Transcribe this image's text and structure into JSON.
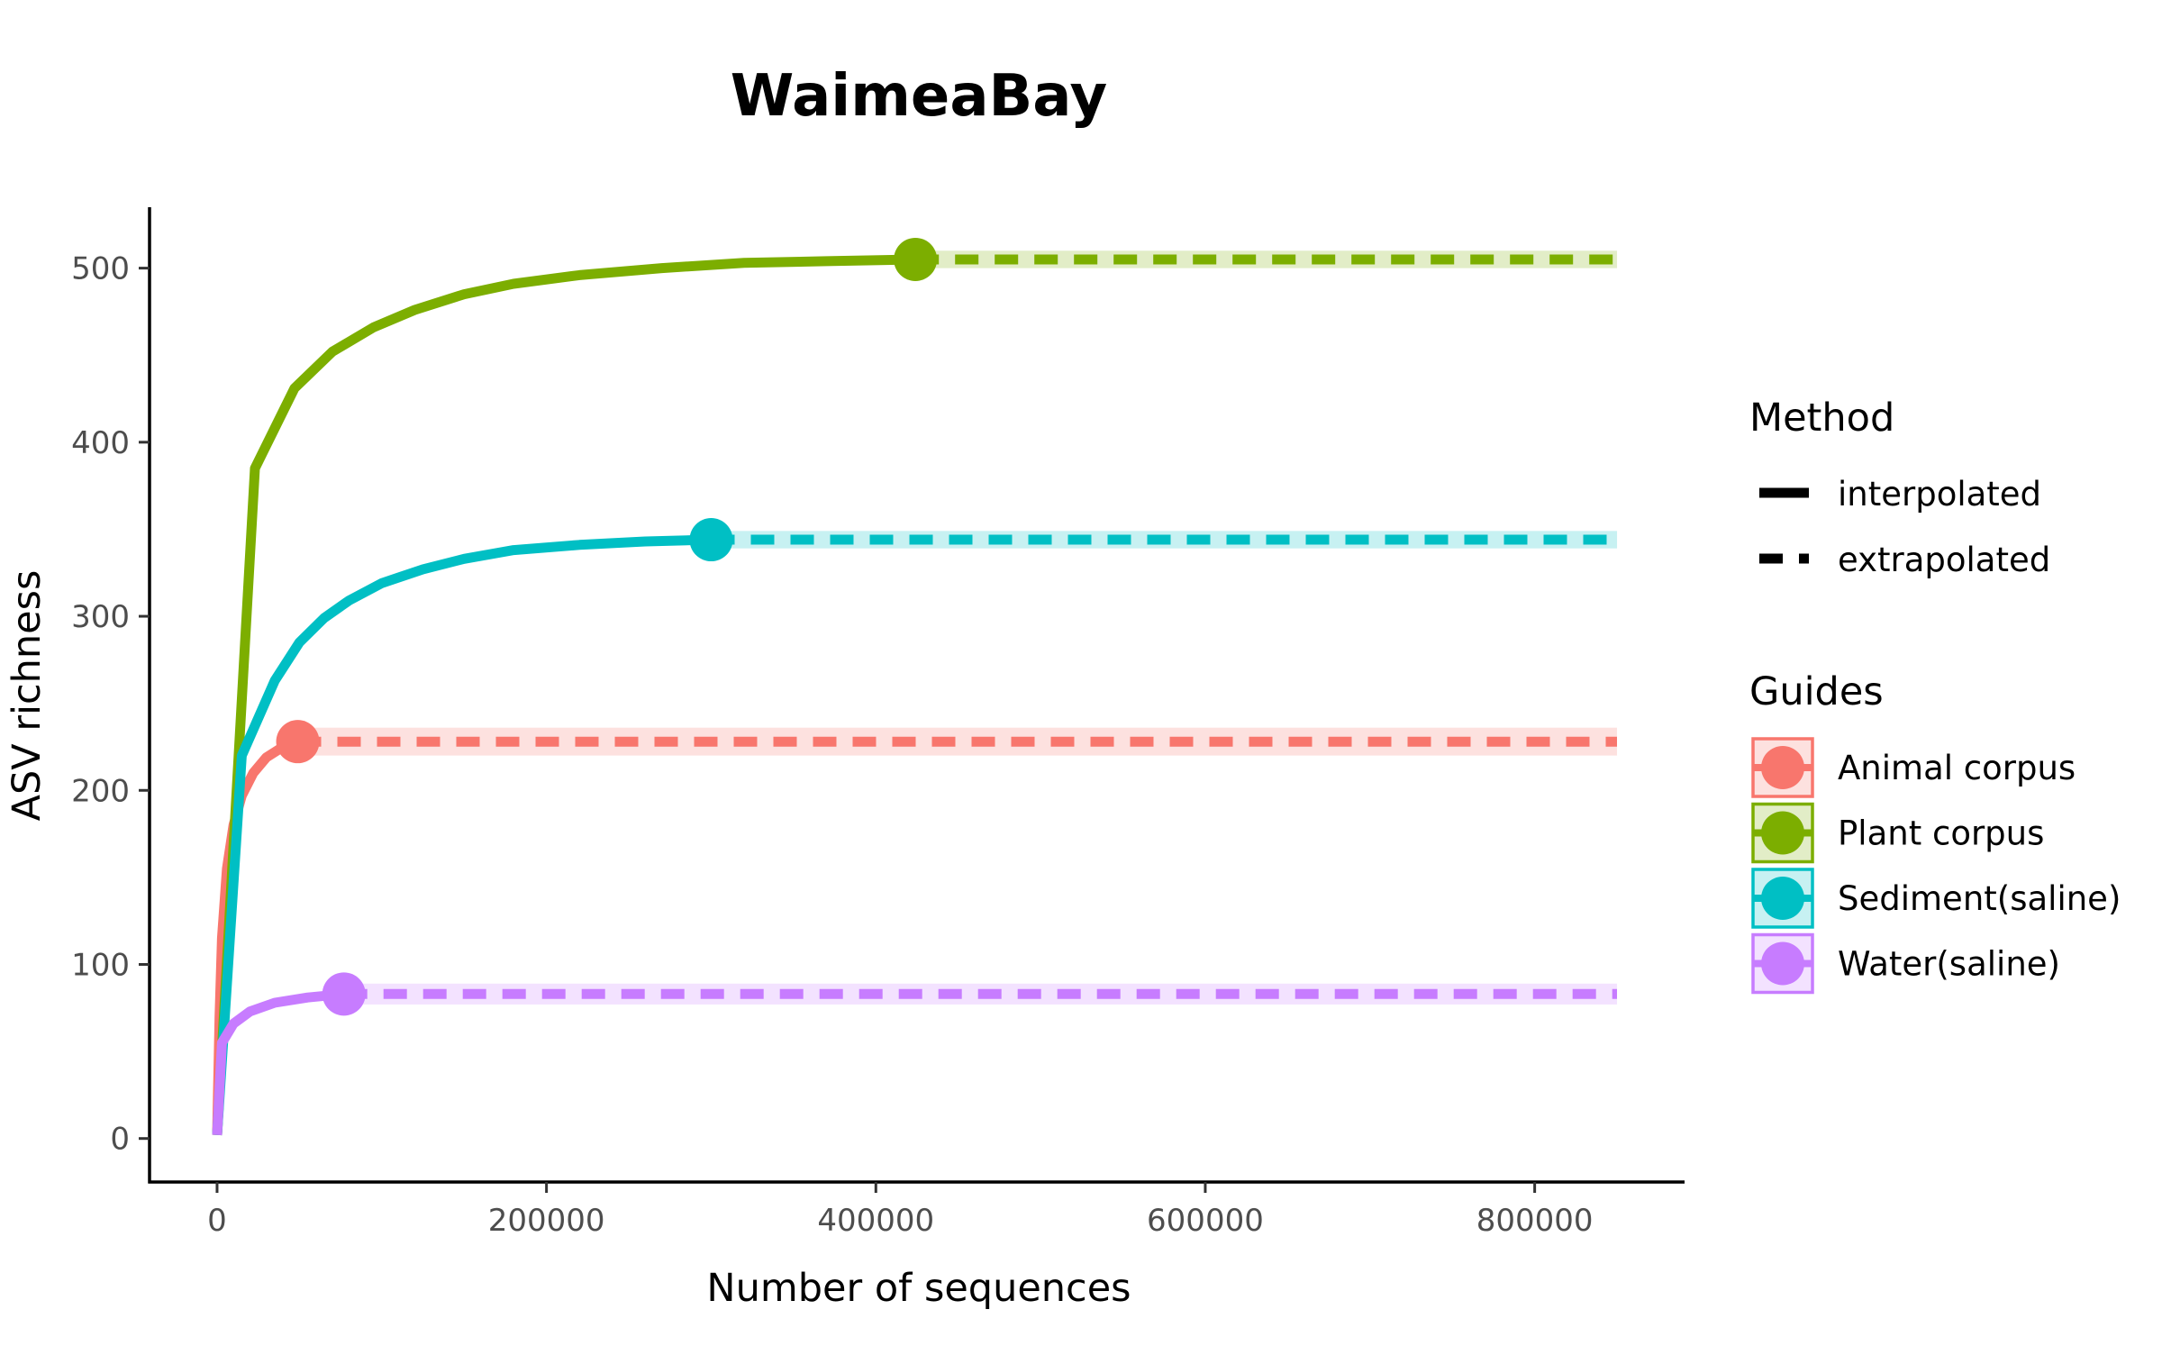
{
  "chart_data": {
    "type": "line",
    "title": "WaimeaBay",
    "xlabel": "Number of sequences",
    "ylabel": "ASV richness",
    "xlim": [
      -41000,
      891000
    ],
    "ylim": [
      -25,
      535
    ],
    "x_ticks": [
      0,
      200000,
      400000,
      600000,
      800000
    ],
    "y_ticks": [
      0,
      100,
      200,
      300,
      400,
      500
    ],
    "grid": false,
    "legend_position": "right",
    "legend": {
      "method_title": "Method",
      "method_items": [
        {
          "label": "interpolated",
          "dash": "solid"
        },
        {
          "label": "extrapolated",
          "dash": "dashed"
        }
      ],
      "guides_title": "Guides"
    },
    "series": [
      {
        "name": "Animal corpus",
        "color": "#F8766D",
        "observed": {
          "x": 49000,
          "y": 228
        },
        "interpolated": [
          [
            0,
            2
          ],
          [
            1500,
            70
          ],
          [
            3000,
            115
          ],
          [
            6000,
            155
          ],
          [
            10000,
            180
          ],
          [
            15000,
            197
          ],
          [
            22000,
            210
          ],
          [
            30000,
            219
          ],
          [
            40000,
            225
          ],
          [
            49000,
            228
          ]
        ],
        "extrapolated": [
          [
            49000,
            228
          ],
          [
            850000,
            228
          ]
        ],
        "ci_band": 8
      },
      {
        "name": "Plant corpus",
        "color": "#7CAE00",
        "observed": {
          "x": 424000,
          "y": 505
        },
        "interpolated": [
          [
            0,
            2
          ],
          [
            23000,
            385
          ],
          [
            47000,
            431
          ],
          [
            70000,
            452
          ],
          [
            95000,
            466
          ],
          [
            120000,
            476
          ],
          [
            150000,
            485
          ],
          [
            180000,
            491
          ],
          [
            220000,
            496
          ],
          [
            270000,
            500
          ],
          [
            320000,
            503
          ],
          [
            370000,
            504
          ],
          [
            424000,
            505
          ]
        ],
        "extrapolated": [
          [
            424000,
            505
          ],
          [
            850000,
            505
          ]
        ],
        "ci_band": 5
      },
      {
        "name": "Sediment(saline)",
        "color": "#00BFC4",
        "observed": {
          "x": 300000,
          "y": 344
        },
        "interpolated": [
          [
            0,
            2
          ],
          [
            15000,
            220
          ],
          [
            35000,
            263
          ],
          [
            50000,
            285
          ],
          [
            65000,
            299
          ],
          [
            80000,
            309
          ],
          [
            100000,
            319
          ],
          [
            125000,
            327
          ],
          [
            150000,
            333
          ],
          [
            180000,
            338
          ],
          [
            220000,
            341
          ],
          [
            260000,
            343
          ],
          [
            300000,
            344
          ]
        ],
        "extrapolated": [
          [
            300000,
            344
          ],
          [
            850000,
            344
          ]
        ],
        "ci_band": 5
      },
      {
        "name": "Water(saline)",
        "color": "#C77CFF",
        "observed": {
          "x": 77000,
          "y": 83
        },
        "interpolated": [
          [
            0,
            2
          ],
          [
            3000,
            55
          ],
          [
            10000,
            66
          ],
          [
            20000,
            73
          ],
          [
            35000,
            78
          ],
          [
            55000,
            81
          ],
          [
            77000,
            83
          ]
        ],
        "extrapolated": [
          [
            77000,
            83
          ],
          [
            850000,
            83
          ]
        ],
        "ci_band": 6
      }
    ]
  }
}
